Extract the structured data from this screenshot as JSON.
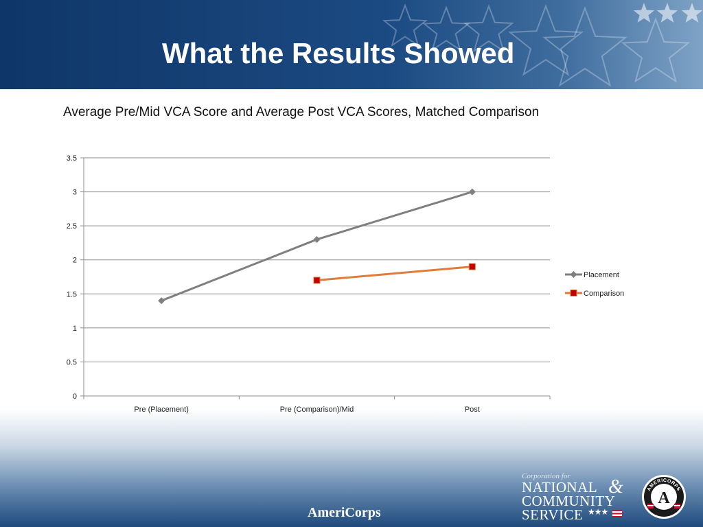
{
  "slide": {
    "title": "What the Results Showed"
  },
  "chart_data": {
    "type": "line",
    "title": "Average Pre/Mid VCA Score and Average Post VCA Scores, Matched Comparison",
    "xlabel": "",
    "ylabel": "",
    "categories": [
      "Pre (Placement)",
      "Pre (Comparison)/Mid",
      "Post"
    ],
    "ylim": [
      0,
      3.5
    ],
    "yticks": [
      0,
      0.5,
      1,
      1.5,
      2,
      2.5,
      3,
      3.5
    ],
    "ytick_labels": [
      "0",
      "0.5",
      "1",
      "1.5",
      "2",
      "2.5",
      "3",
      "3.5"
    ],
    "grid": true,
    "legend_position": "right",
    "series": [
      {
        "name": "Placement",
        "values": [
          1.4,
          2.3,
          3.0
        ],
        "color": "#7f7f7f",
        "marker": "diamond"
      },
      {
        "name": "Comparison",
        "values": [
          null,
          1.7,
          1.9
        ],
        "color": "#e07b39",
        "marker": "square",
        "marker_fill": "#c00000"
      }
    ]
  },
  "footer": {
    "brand": "AmeriCorps",
    "cncs_prefix": "Corporation for",
    "cncs_line1": "NATIONAL",
    "cncs_amp": "&",
    "cncs_line2": "COMMUNITY",
    "cncs_line3": "SERVICE",
    "seal_text": "AMERICORPS",
    "seal_letter": "A"
  },
  "icons": {
    "header_decoration": "stars-icon",
    "cncs_stars": "stars-icon",
    "cncs_flag": "flag-icon",
    "seal": "americorps-seal-icon"
  }
}
